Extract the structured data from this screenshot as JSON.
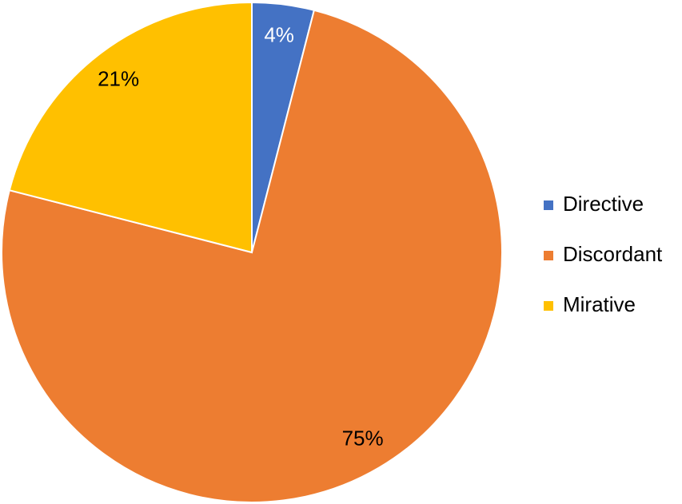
{
  "chart_data": {
    "type": "pie",
    "categories": [
      "Directive",
      "Discordant",
      "Mirative"
    ],
    "values": [
      4,
      75,
      21
    ],
    "value_labels": [
      "4%",
      "75%",
      "21%"
    ],
    "colors": [
      "#4472c4",
      "#ed7d31",
      "#ffc000"
    ],
    "legend": "right"
  }
}
